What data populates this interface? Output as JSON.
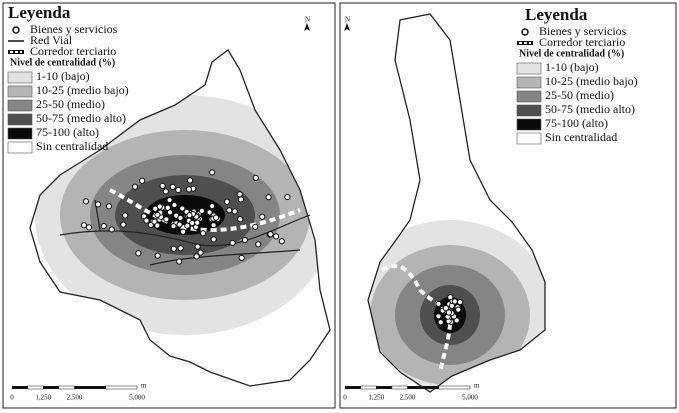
{
  "panels": [
    {
      "legend": {
        "title": "Leyenda",
        "items": [
          "Bienes y servicios",
          "Red Vial",
          "Corredor terciario"
        ],
        "subtitle": "Nivel de centralidad (%)",
        "classes": [
          {
            "label": "1-10 (bajo)",
            "color": "#e3e3e3"
          },
          {
            "label": "10-25 (medio bajo)",
            "color": "#b4b4b4"
          },
          {
            "label": "25-50 (medio)",
            "color": "#858585"
          },
          {
            "label": "50-75 (medio alto)",
            "color": "#4f4f4f"
          },
          {
            "label": "75-100 (alto)",
            "color": "#0a0a0a"
          },
          {
            "label": "Sin centralidad",
            "color": "#ffffff"
          }
        ]
      },
      "north": "N",
      "scale": {
        "labels": [
          "0",
          "1,250",
          "2,500",
          "5,000"
        ],
        "unit": "m"
      }
    },
    {
      "legend": {
        "title": "Leyenda",
        "items": [
          "Bienes y servicios",
          "Corredor terciario"
        ],
        "subtitle": "Nivel de centralidad (%)",
        "classes": [
          {
            "label": "1-10 (bajo)",
            "color": "#e3e3e3"
          },
          {
            "label": "10-25 (medio bajo)",
            "color": "#b4b4b4"
          },
          {
            "label": "25-50 (medio)",
            "color": "#858585"
          },
          {
            "label": "50-75 (medio alto)",
            "color": "#4f4f4f"
          },
          {
            "label": "75-100 (alto)",
            "color": "#0a0a0a"
          },
          {
            "label": "Sin centralidad",
            "color": "#ffffff"
          }
        ]
      },
      "north": "N",
      "scale": {
        "labels": [
          "0",
          "1,250",
          "2,500",
          "5,000"
        ],
        "unit": "m"
      }
    }
  ]
}
